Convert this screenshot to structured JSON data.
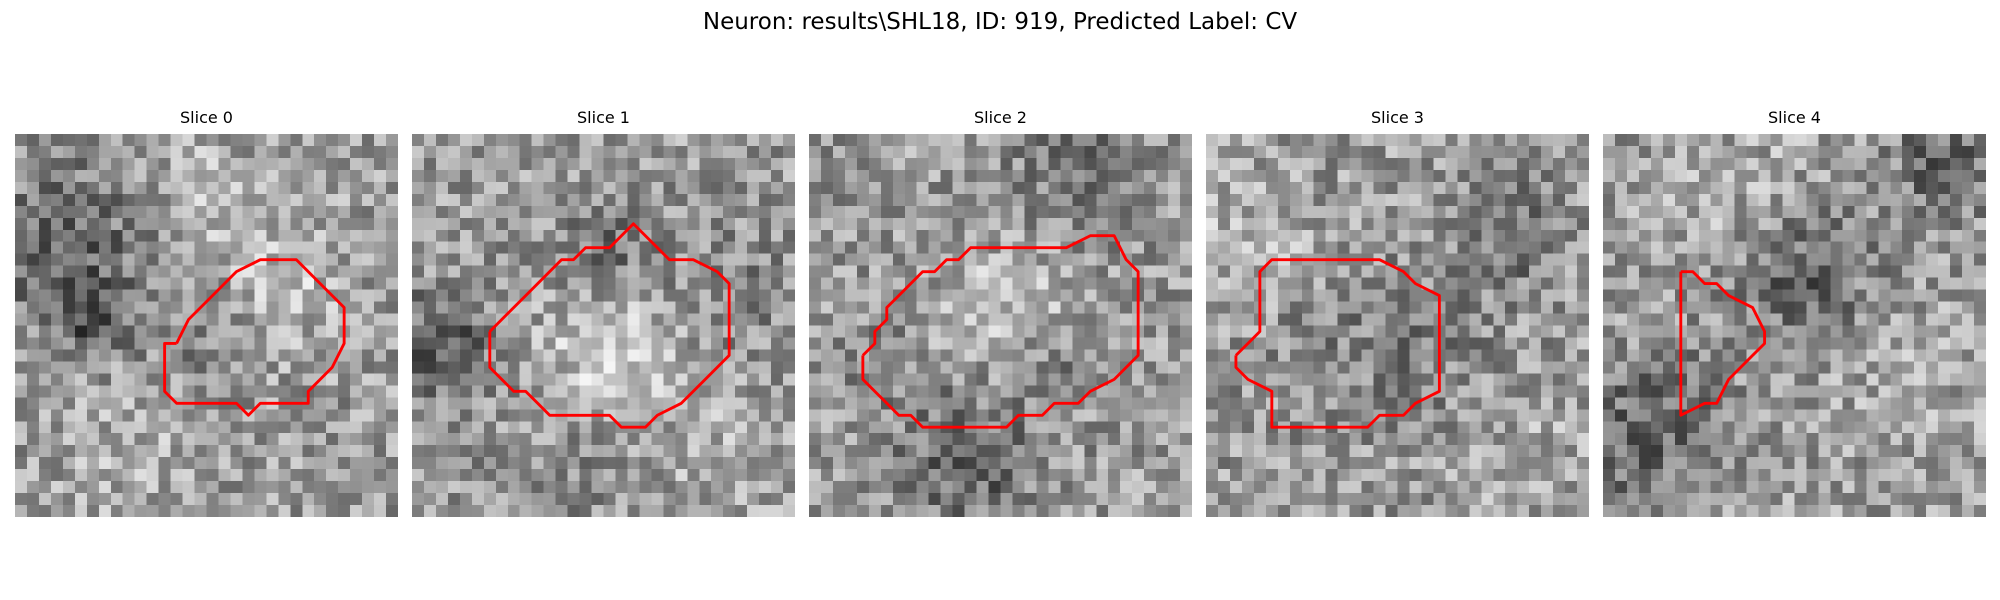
{
  "figure": {
    "title": "Neuron: results\\SHL18, ID: 919, Predicted Label: CV"
  },
  "panels": [
    {
      "title": "Slice 0"
    },
    {
      "title": "Slice 1"
    },
    {
      "title": "Slice 2"
    },
    {
      "title": "Slice 3"
    },
    {
      "title": "Slice 4"
    }
  ],
  "colors": {
    "contour": "#ff0000",
    "colormap": "gray"
  }
}
